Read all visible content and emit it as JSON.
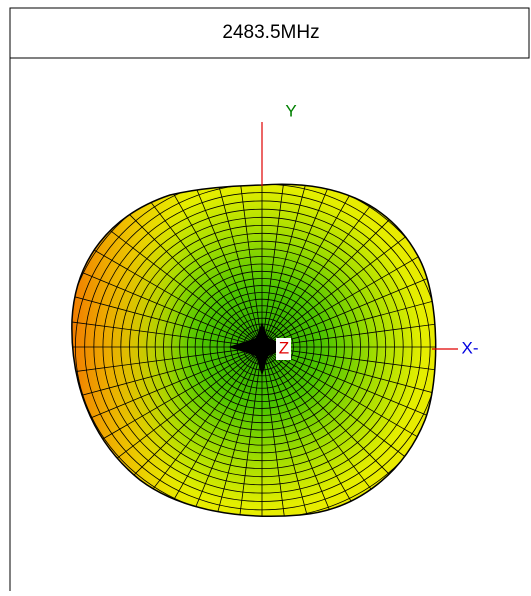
{
  "header": {
    "title": "2483.5MHz"
  },
  "axes": {
    "y": "Y",
    "x": "X-",
    "z": "Z"
  }
}
